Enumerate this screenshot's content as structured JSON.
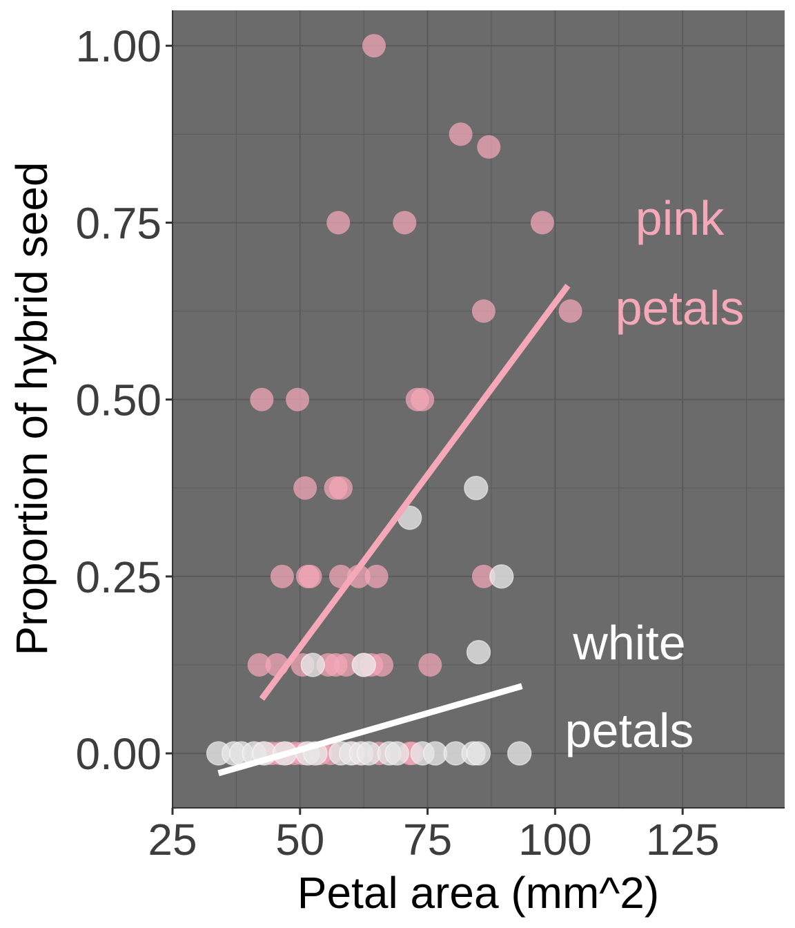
{
  "chart_data": {
    "type": "scatter",
    "xlabel": "Petal area (mm^2)",
    "ylabel": "Proportion of hybrid seed",
    "xlim": [
      25,
      145
    ],
    "ylim": [
      -0.077,
      1.05
    ],
    "x_ticks": [
      25,
      50,
      75,
      100,
      125
    ],
    "x_tick_labels": [
      "25",
      "50",
      "75",
      "100",
      "125"
    ],
    "y_ticks": [
      0.0,
      0.25,
      0.5,
      0.75,
      1.0
    ],
    "y_tick_labels": [
      "0.00",
      "0.25",
      "0.50",
      "0.75",
      "1.00"
    ],
    "grid": true,
    "panel_color": "#6b6b6b",
    "grid_color": "#5a5a5a",
    "legend": "none",
    "series": [
      {
        "color": "#f5a8b8",
        "points": [
          [
            64.5,
            1.0
          ],
          [
            81.5,
            0.875
          ],
          [
            87.0,
            0.857
          ],
          [
            57.5,
            0.75
          ],
          [
            70.5,
            0.75
          ],
          [
            97.5,
            0.75
          ],
          [
            86.0,
            0.625
          ],
          [
            103.0,
            0.625
          ],
          [
            42.5,
            0.5
          ],
          [
            49.5,
            0.5
          ],
          [
            73.0,
            0.5
          ],
          [
            74.0,
            0.5
          ],
          [
            51.0,
            0.375
          ],
          [
            57.0,
            0.375
          ],
          [
            58.0,
            0.375
          ],
          [
            46.5,
            0.25
          ],
          [
            51.5,
            0.25
          ],
          [
            52.0,
            0.25
          ],
          [
            58.0,
            0.25
          ],
          [
            61.5,
            0.25
          ],
          [
            65.0,
            0.25
          ],
          [
            86.0,
            0.25
          ],
          [
            42.0,
            0.125
          ],
          [
            45.5,
            0.125
          ],
          [
            50.5,
            0.125
          ],
          [
            55.5,
            0.125
          ],
          [
            57.0,
            0.125
          ],
          [
            59.0,
            0.125
          ],
          [
            62.5,
            0.125
          ],
          [
            64.0,
            0.125
          ],
          [
            66.0,
            0.125
          ],
          [
            75.5,
            0.125
          ],
          [
            42.5,
            0.0
          ],
          [
            44.5,
            0.0
          ],
          [
            46.0,
            0.0
          ],
          [
            47.5,
            0.0
          ],
          [
            49.0,
            0.0
          ],
          [
            50.5,
            0.0
          ],
          [
            54.0,
            0.0
          ],
          [
            56.0,
            0.0
          ],
          [
            60.5,
            0.0
          ],
          [
            65.5,
            0.0
          ],
          [
            71.5,
            0.0
          ],
          [
            72.0,
            0.0
          ]
        ],
        "fit": [
          [
            42.5,
            0.077
          ],
          [
            102.5,
            0.661
          ]
        ]
      },
      {
        "color": "#e8e8e8",
        "points": [
          [
            71.5,
            0.333
          ],
          [
            84.5,
            0.375
          ],
          [
            89.5,
            0.25
          ],
          [
            85.0,
            0.143
          ],
          [
            52.5,
            0.125
          ],
          [
            62.5,
            0.125
          ],
          [
            34.0,
            0.0
          ],
          [
            37.0,
            0.0
          ],
          [
            38.5,
            0.0
          ],
          [
            41.0,
            0.0
          ],
          [
            43.0,
            0.0
          ],
          [
            47.0,
            0.0
          ],
          [
            51.5,
            0.0
          ],
          [
            53.0,
            0.0
          ],
          [
            58.0,
            0.0
          ],
          [
            60.0,
            0.0
          ],
          [
            62.0,
            0.0
          ],
          [
            63.5,
            0.0
          ],
          [
            67.5,
            0.0
          ],
          [
            69.0,
            0.0
          ],
          [
            74.0,
            0.0
          ],
          [
            76.5,
            0.0
          ],
          [
            80.5,
            0.0
          ],
          [
            84.0,
            0.0
          ],
          [
            85.0,
            0.0
          ],
          [
            93.0,
            0.0
          ]
        ],
        "fit": [
          [
            34.0,
            -0.028
          ],
          [
            93.5,
            0.095
          ]
        ]
      }
    ],
    "annotations": [
      {
        "text": "pink",
        "color": "#f5a8b8"
      },
      {
        "text": "petals",
        "color": "#f5a8b8"
      },
      {
        "text": "white",
        "color": "#ffffff"
      },
      {
        "text": "petals",
        "color": "#ffffff"
      }
    ]
  }
}
